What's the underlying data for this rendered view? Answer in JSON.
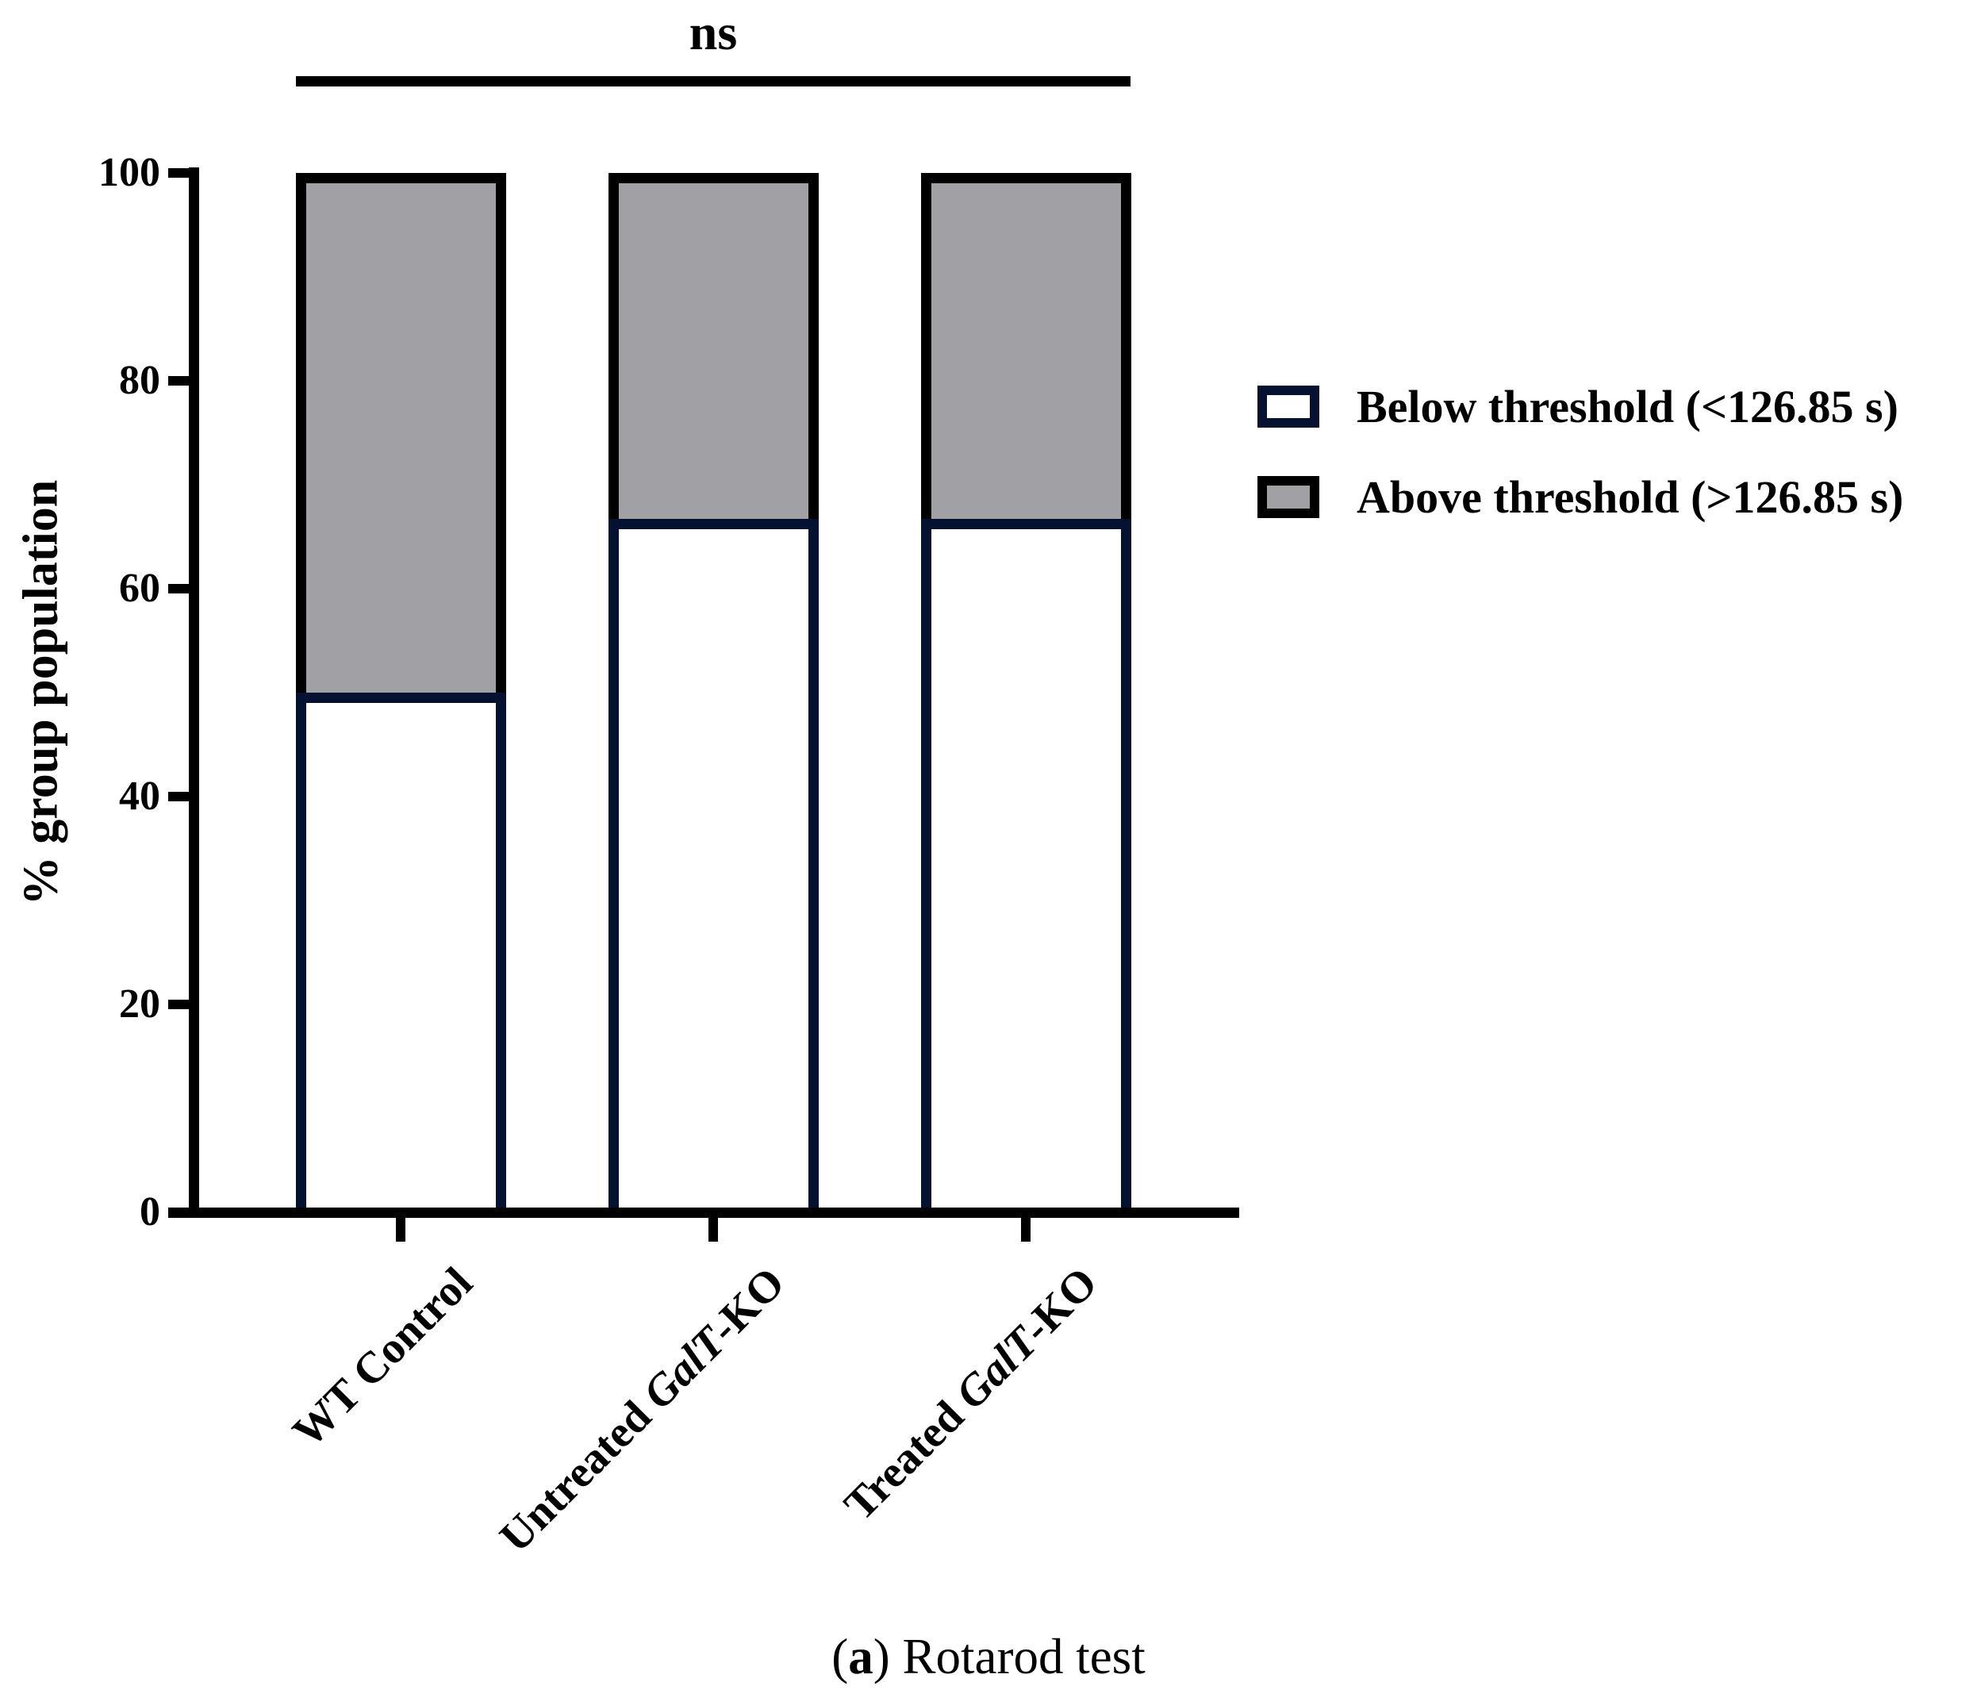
{
  "figure": {
    "significance_label": "ns",
    "caption": {
      "paren_open": "(",
      "marker": "a",
      "rest": ") Rotarod test"
    },
    "categories": [
      {
        "pre": "WT Control",
        "italic": "",
        "post": ""
      },
      {
        "pre": "Untreated ",
        "italic": "GalT",
        "post": "-KO"
      },
      {
        "pre": "Treated ",
        "italic": "GalT",
        "post": "-KO"
      }
    ],
    "colors": {
      "navy": "#041130",
      "gray": "#a1a0a5",
      "black": "#000000",
      "background": "#ffffff"
    }
  },
  "chart_data": {
    "type": "bar",
    "stacked": true,
    "orientation": "vertical",
    "categories": [
      "WT Control",
      "Untreated GalT-KO",
      "Treated GalT-KO"
    ],
    "series": [
      {
        "name": "Below threshold (<126.85 s)",
        "values": [
          50,
          66.7,
          66.7
        ],
        "fill": "#ffffff",
        "border": "#041130"
      },
      {
        "name": "Above threshold (>126.85 s)",
        "values": [
          50,
          33.3,
          33.3
        ],
        "fill": "#a1a0a5",
        "border": "#000000"
      }
    ],
    "title": "",
    "xlabel": "",
    "ylabel": "% group population",
    "ylim": [
      0,
      100
    ],
    "yticks": [
      0,
      20,
      40,
      60,
      80,
      100
    ],
    "grid": false,
    "legend_position": "right-of-plot",
    "annotations": [
      {
        "text": "ns",
        "type": "significance-bracket",
        "spans": "all-three-bars"
      }
    ],
    "caption": "(a) Rotarod test"
  }
}
